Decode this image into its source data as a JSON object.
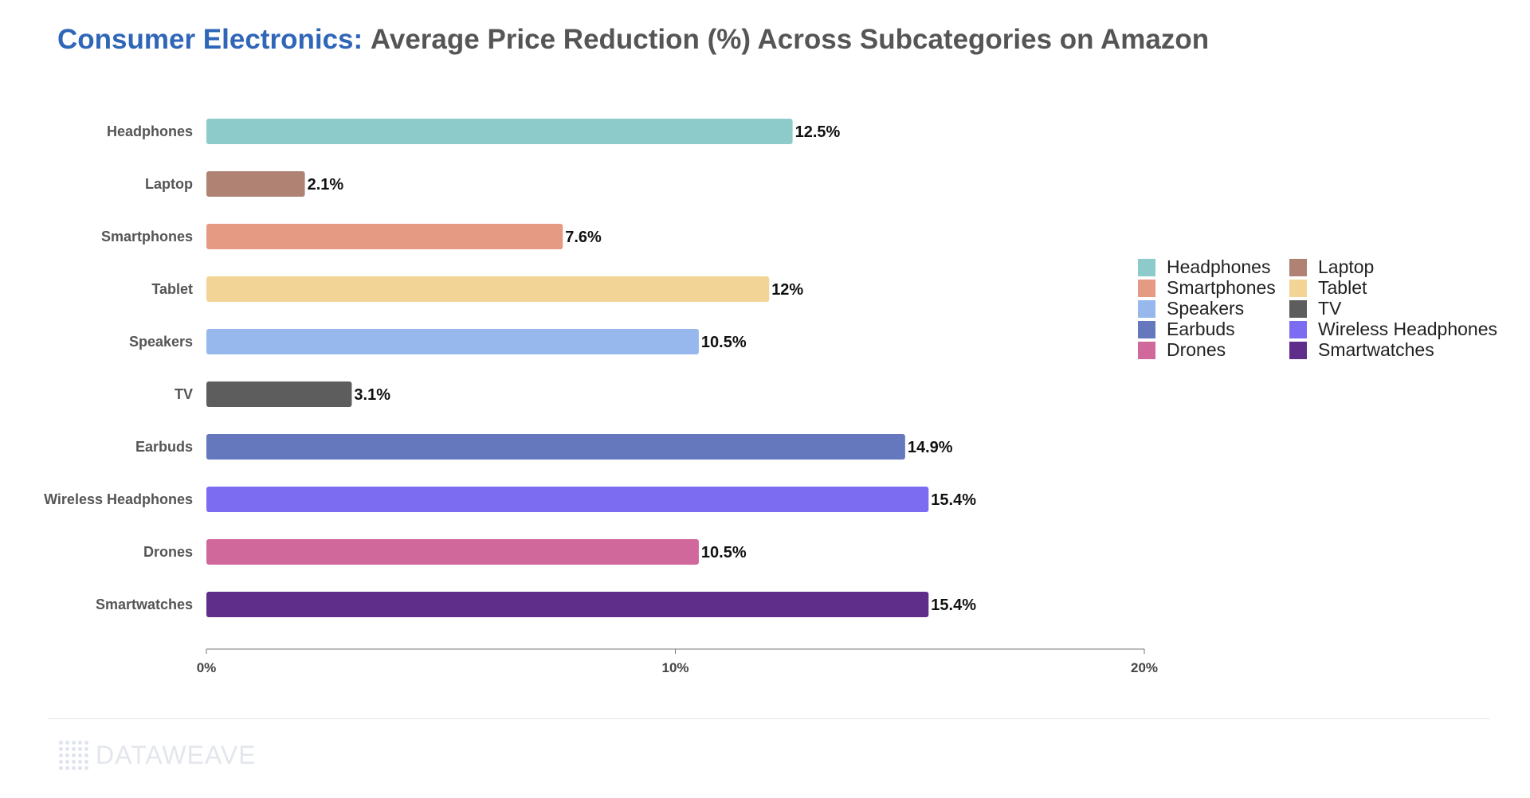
{
  "title": {
    "accent": "Consumer Electronics:",
    "rest": "Average Price Reduction (%) Across Subcategories on Amazon"
  },
  "chart_data": {
    "type": "bar",
    "orientation": "horizontal",
    "categories": [
      "Headphones",
      "Laptop",
      "Smartphones",
      "Tablet",
      "Speakers",
      "TV",
      "Earbuds",
      "Wireless Headphones",
      "Drones",
      "Smartwatches"
    ],
    "values": [
      12.5,
      2.1,
      7.6,
      12,
      10.5,
      3.1,
      14.9,
      15.4,
      10.5,
      15.4
    ],
    "value_labels": [
      "12.5%",
      "2.1%",
      "7.6%",
      "12%",
      "10.5%",
      "3.1%",
      "14.9%",
      "15.4%",
      "10.5%",
      "15.4%"
    ],
    "colors": [
      "#8ccbca",
      "#b08273",
      "#e49a83",
      "#f2d596",
      "#96b8ec",
      "#5d5d5d",
      "#6577bd",
      "#7b6cf2",
      "#d1689c",
      "#5f2d8a"
    ],
    "xlim": [
      0,
      20
    ],
    "xticks": [
      0,
      10,
      20
    ],
    "xtick_labels": [
      "0%",
      "10%",
      "20%"
    ],
    "xlabel": "",
    "ylabel": "",
    "grid": false,
    "legend_position": "right"
  },
  "legend": {
    "items": [
      {
        "label": "Headphones",
        "color": "#8ccbca"
      },
      {
        "label": "Laptop",
        "color": "#b08273"
      },
      {
        "label": "Smartphones",
        "color": "#e49a83"
      },
      {
        "label": "Tablet",
        "color": "#f2d596"
      },
      {
        "label": "Speakers",
        "color": "#96b8ec"
      },
      {
        "label": "TV",
        "color": "#5d5d5d"
      },
      {
        "label": "Earbuds",
        "color": "#6577bd"
      },
      {
        "label": "Wireless Headphones",
        "color": "#7b6cf2"
      },
      {
        "label": "Drones",
        "color": "#d1689c"
      },
      {
        "label": "Smartwatches",
        "color": "#5f2d8a"
      }
    ]
  },
  "footer": {
    "logo_text": "DATAWEAVE"
  }
}
